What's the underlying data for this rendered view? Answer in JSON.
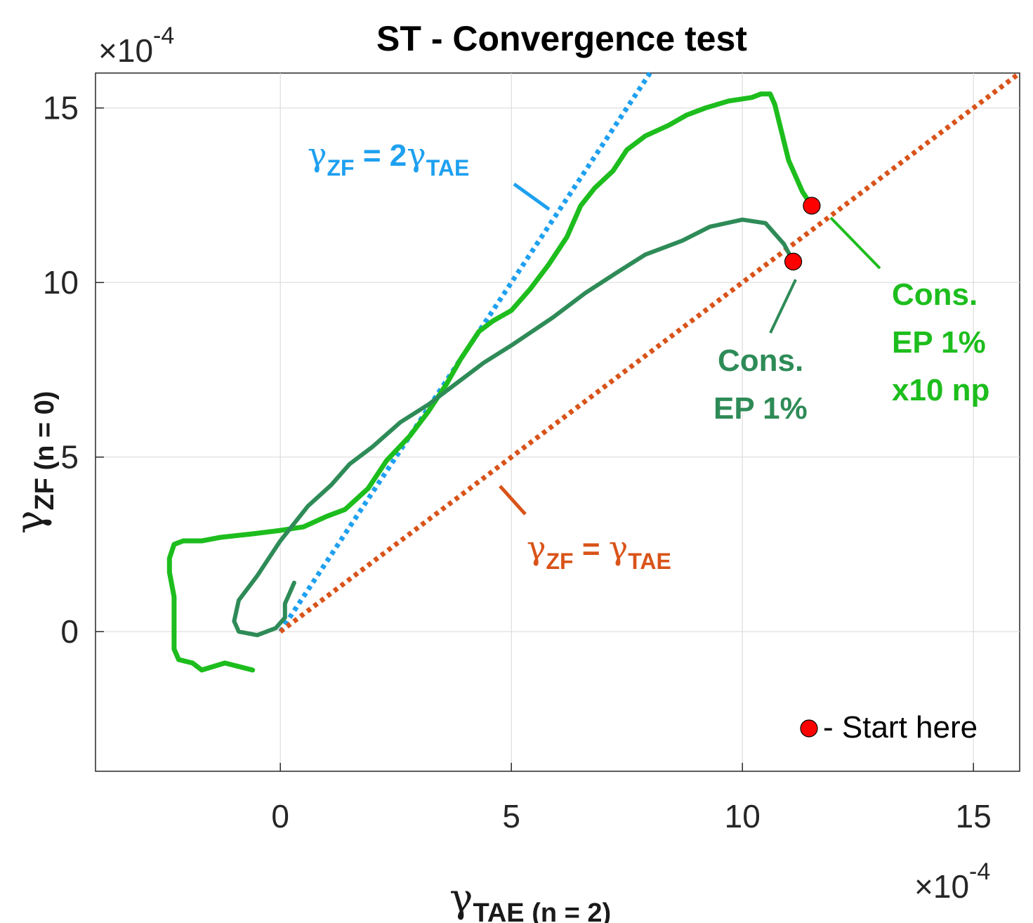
{
  "chart_data": {
    "type": "line",
    "title": "ST - Convergence test",
    "xlabel": {
      "symbol": "γ",
      "sub": "TAE (n = 2)"
    },
    "ylabel": {
      "symbol": "γ",
      "sub": "ZF (n = 0)"
    },
    "xlim": [
      -4,
      16
    ],
    "ylim": [
      -4,
      16
    ],
    "xticks": [
      0,
      5,
      10,
      15
    ],
    "yticks": [
      0,
      5,
      10,
      15
    ],
    "x_exponent": {
      "base": "×10",
      "exp": "-4"
    },
    "y_exponent": {
      "base": "×10",
      "exp": "-4"
    },
    "grid": true,
    "reference_lines": [
      {
        "name": "gamma-zf-equals-2-gamma-tae",
        "slope": 2,
        "x_range": [
          0,
          8
        ],
        "color": "#1ea0f0",
        "label": {
          "sym1": "γ",
          "sub1": "ZF",
          "mid": " = 2",
          "sym2": "γ",
          "sub2": "TAE"
        }
      },
      {
        "name": "gamma-zf-equals-gamma-tae",
        "slope": 1,
        "x_range": [
          0,
          16
        ],
        "color": "#d95319",
        "label": {
          "sym1": "γ",
          "sub1": "ZF",
          "mid": " = ",
          "sym2": "γ",
          "sub2": "TAE"
        }
      }
    ],
    "series": [
      {
        "name": "Cons. EP 1% x10 np",
        "color": "#1dbd1d",
        "label_lines": [
          "Cons.",
          "EP 1%",
          "x10 np"
        ],
        "start": [
          11.5,
          12.2
        ],
        "points": [
          [
            11.5,
            12.2
          ],
          [
            11.3,
            12.6
          ],
          [
            11.0,
            13.5
          ],
          [
            10.7,
            15.1
          ],
          [
            10.6,
            15.4
          ],
          [
            10.4,
            15.4
          ],
          [
            10.2,
            15.3
          ],
          [
            9.7,
            15.2
          ],
          [
            9.2,
            15.0
          ],
          [
            8.8,
            14.8
          ],
          [
            8.4,
            14.5
          ],
          [
            7.9,
            14.2
          ],
          [
            7.5,
            13.8
          ],
          [
            7.2,
            13.2
          ],
          [
            6.8,
            12.7
          ],
          [
            6.5,
            12.2
          ],
          [
            6.2,
            11.3
          ],
          [
            5.8,
            10.5
          ],
          [
            5.4,
            9.8
          ],
          [
            5.0,
            9.2
          ],
          [
            4.6,
            8.9
          ],
          [
            4.3,
            8.6
          ],
          [
            3.9,
            7.8
          ],
          [
            3.6,
            7.1
          ],
          [
            3.2,
            6.3
          ],
          [
            2.8,
            5.6
          ],
          [
            2.3,
            4.9
          ],
          [
            1.9,
            4.1
          ],
          [
            1.4,
            3.5
          ],
          [
            1.0,
            3.3
          ],
          [
            0.5,
            3.0
          ],
          [
            0.0,
            2.9
          ],
          [
            -0.6,
            2.8
          ],
          [
            -1.3,
            2.7
          ],
          [
            -1.7,
            2.6
          ],
          [
            -2.1,
            2.6
          ],
          [
            -2.3,
            2.5
          ],
          [
            -2.4,
            2.1
          ],
          [
            -2.4,
            1.7
          ],
          [
            -2.3,
            1.0
          ],
          [
            -2.3,
            -0.5
          ],
          [
            -2.2,
            -0.8
          ],
          [
            -1.9,
            -0.9
          ],
          [
            -1.7,
            -1.1
          ],
          [
            -1.2,
            -0.9
          ],
          [
            -0.9,
            -1.0
          ],
          [
            -0.6,
            -1.1
          ]
        ]
      },
      {
        "name": "Cons. EP 1%",
        "color": "#2e8b57",
        "label_lines": [
          "Cons.",
          "EP 1%"
        ],
        "start": [
          11.1,
          10.6
        ],
        "points": [
          [
            11.1,
            10.6
          ],
          [
            10.9,
            11.1
          ],
          [
            10.5,
            11.7
          ],
          [
            10.0,
            11.8
          ],
          [
            9.3,
            11.6
          ],
          [
            8.7,
            11.2
          ],
          [
            7.9,
            10.8
          ],
          [
            7.3,
            10.3
          ],
          [
            6.6,
            9.7
          ],
          [
            5.9,
            9.0
          ],
          [
            5.0,
            8.2
          ],
          [
            4.4,
            7.7
          ],
          [
            3.8,
            7.1
          ],
          [
            3.2,
            6.5
          ],
          [
            2.6,
            6.0
          ],
          [
            2.0,
            5.3
          ],
          [
            1.5,
            4.8
          ],
          [
            1.1,
            4.2
          ],
          [
            0.6,
            3.6
          ],
          [
            0.0,
            2.6
          ],
          [
            -0.5,
            1.6
          ],
          [
            -0.9,
            0.9
          ],
          [
            -1.0,
            0.3
          ],
          [
            -0.9,
            0.0
          ],
          [
            -0.5,
            -0.1
          ],
          [
            -0.1,
            0.1
          ],
          [
            0.1,
            0.4
          ],
          [
            0.1,
            0.8
          ],
          [
            0.2,
            1.1
          ],
          [
            0.3,
            1.4
          ]
        ]
      }
    ],
    "legend": {
      "marker_color": "#ff0000",
      "text": "- Start here",
      "position": "bottom-right"
    }
  }
}
